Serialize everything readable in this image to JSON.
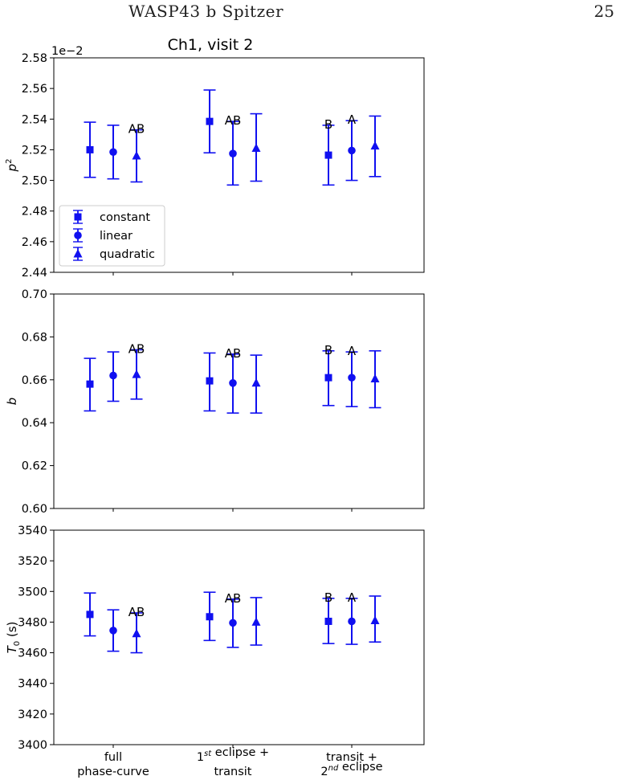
{
  "header": {
    "running_title": "WASP43 b Spitzer",
    "page_number": "25"
  },
  "figure_title": "Ch1, visit 2",
  "chart_data": [
    {
      "type": "scatter",
      "title": "Ch1, visit 2",
      "ylabel": "p²",
      "ylabel_base": "p",
      "ylabel_sup": "2",
      "offset_label": "1e−2",
      "ylim": [
        2.44,
        2.58
      ],
      "yticks": [
        "2.44",
        "2.46",
        "2.48",
        "2.50",
        "2.52",
        "2.54",
        "2.56",
        "2.58"
      ],
      "grid": false,
      "legend": {
        "placement": "lower-left",
        "entries": [
          {
            "label": "constant",
            "marker": "square"
          },
          {
            "label": "linear",
            "marker": "circle"
          },
          {
            "label": "quadratic",
            "marker": "triangle"
          }
        ]
      },
      "groups": [
        {
          "points": [
            {
              "model": "constant",
              "marker": "square",
              "y": 2.52,
              "lo": 2.502,
              "hi": 2.538
            },
            {
              "model": "linear",
              "marker": "circle",
              "y": 2.5185,
              "lo": 2.501,
              "hi": 2.536
            },
            {
              "model": "quadratic",
              "marker": "triangle",
              "y": 2.516,
              "lo": 2.499,
              "hi": 2.533
            }
          ],
          "annotations": [
            {
              "text": "AB",
              "model": "quadratic"
            }
          ]
        },
        {
          "points": [
            {
              "model": "constant",
              "marker": "square",
              "y": 2.5385,
              "lo": 2.518,
              "hi": 2.559
            },
            {
              "model": "linear",
              "marker": "circle",
              "y": 2.5175,
              "lo": 2.497,
              "hi": 2.5385
            },
            {
              "model": "quadratic",
              "marker": "triangle",
              "y": 2.521,
              "lo": 2.4995,
              "hi": 2.5435
            }
          ],
          "annotations": [
            {
              "text": "AB",
              "model": "linear"
            }
          ]
        },
        {
          "points": [
            {
              "model": "constant",
              "marker": "square",
              "y": 2.5165,
              "lo": 2.497,
              "hi": 2.536
            },
            {
              "model": "linear",
              "marker": "circle",
              "y": 2.5195,
              "lo": 2.5,
              "hi": 2.539
            },
            {
              "model": "quadratic",
              "marker": "triangle",
              "y": 2.5225,
              "lo": 2.5025,
              "hi": 2.542
            }
          ],
          "annotations": [
            {
              "text": "B",
              "model": "constant"
            },
            {
              "text": "A",
              "model": "linear"
            }
          ]
        }
      ]
    },
    {
      "type": "scatter",
      "ylabel": "b",
      "ylim": [
        0.6,
        0.7
      ],
      "yticks": [
        "0.60",
        "0.62",
        "0.64",
        "0.66",
        "0.68",
        "0.70"
      ],
      "grid": false,
      "groups": [
        {
          "points": [
            {
              "model": "constant",
              "marker": "square",
              "y": 0.658,
              "lo": 0.6455,
              "hi": 0.67
            },
            {
              "model": "linear",
              "marker": "circle",
              "y": 0.662,
              "lo": 0.65,
              "hi": 0.673
            },
            {
              "model": "quadratic",
              "marker": "triangle",
              "y": 0.6625,
              "lo": 0.651,
              "hi": 0.674
            }
          ],
          "annotations": [
            {
              "text": "AB",
              "model": "quadratic"
            }
          ]
        },
        {
          "points": [
            {
              "model": "constant",
              "marker": "square",
              "y": 0.6595,
              "lo": 0.6455,
              "hi": 0.6725
            },
            {
              "model": "linear",
              "marker": "circle",
              "y": 0.6585,
              "lo": 0.6445,
              "hi": 0.672
            },
            {
              "model": "quadratic",
              "marker": "triangle",
              "y": 0.6585,
              "lo": 0.6445,
              "hi": 0.6715
            }
          ],
          "annotations": [
            {
              "text": "AB",
              "model": "linear"
            }
          ]
        },
        {
          "points": [
            {
              "model": "constant",
              "marker": "square",
              "y": 0.661,
              "lo": 0.648,
              "hi": 0.6735
            },
            {
              "model": "linear",
              "marker": "circle",
              "y": 0.661,
              "lo": 0.6475,
              "hi": 0.673
            },
            {
              "model": "quadratic",
              "marker": "triangle",
              "y": 0.6605,
              "lo": 0.647,
              "hi": 0.6735
            }
          ],
          "annotations": [
            {
              "text": "B",
              "model": "constant"
            },
            {
              "text": "A",
              "model": "linear"
            }
          ]
        }
      ]
    },
    {
      "type": "scatter",
      "ylabel": "T₀ (s)",
      "ylabel_base": "T",
      "ylabel_sub": "0",
      "ylabel_unit": " (s)",
      "ylim": [
        3400,
        3540
      ],
      "yticks": [
        "3400",
        "3420",
        "3440",
        "3460",
        "3480",
        "3500",
        "3520",
        "3540"
      ],
      "grid": false,
      "categories": [
        {
          "lines": [
            {
              "parts": [
                {
                  "text": "full"
                }
              ]
            },
            {
              "parts": [
                {
                  "text": "phase-curve"
                }
              ]
            }
          ]
        },
        {
          "lines": [
            {
              "parts": [
                {
                  "text": "1"
                },
                {
                  "text": "st",
                  "sup": true
                },
                {
                  "text": " eclipse +"
                }
              ]
            },
            {
              "parts": [
                {
                  "text": "transit"
                }
              ]
            }
          ]
        },
        {
          "lines": [
            {
              "parts": [
                {
                  "text": "transit +"
                }
              ]
            },
            {
              "parts": [
                {
                  "text": "2"
                },
                {
                  "text": "nd",
                  "sup": true
                },
                {
                  "text": " eclipse"
                }
              ]
            }
          ]
        }
      ],
      "groups": [
        {
          "points": [
            {
              "model": "constant",
              "marker": "square",
              "y": 3485,
              "lo": 3471,
              "hi": 3499
            },
            {
              "model": "linear",
              "marker": "circle",
              "y": 3474.5,
              "lo": 3461,
              "hi": 3488
            },
            {
              "model": "quadratic",
              "marker": "triangle",
              "y": 3472.5,
              "lo": 3460,
              "hi": 3486
            }
          ],
          "annotations": [
            {
              "text": "AB",
              "model": "quadratic"
            }
          ]
        },
        {
          "points": [
            {
              "model": "constant",
              "marker": "square",
              "y": 3483.5,
              "lo": 3468,
              "hi": 3499.5
            },
            {
              "model": "linear",
              "marker": "circle",
              "y": 3479.5,
              "lo": 3463.5,
              "hi": 3495
            },
            {
              "model": "quadratic",
              "marker": "triangle",
              "y": 3480,
              "lo": 3465,
              "hi": 3496
            }
          ],
          "annotations": [
            {
              "text": "AB",
              "model": "linear"
            }
          ]
        },
        {
          "points": [
            {
              "model": "constant",
              "marker": "square",
              "y": 3480.5,
              "lo": 3466,
              "hi": 3495.5
            },
            {
              "model": "linear",
              "marker": "circle",
              "y": 3480.5,
              "lo": 3465.5,
              "hi": 3495.5
            },
            {
              "model": "quadratic",
              "marker": "triangle",
              "y": 3481,
              "lo": 3467,
              "hi": 3497
            }
          ],
          "annotations": [
            {
              "text": "B",
              "model": "constant"
            },
            {
              "text": "A",
              "model": "linear"
            }
          ]
        }
      ]
    }
  ]
}
